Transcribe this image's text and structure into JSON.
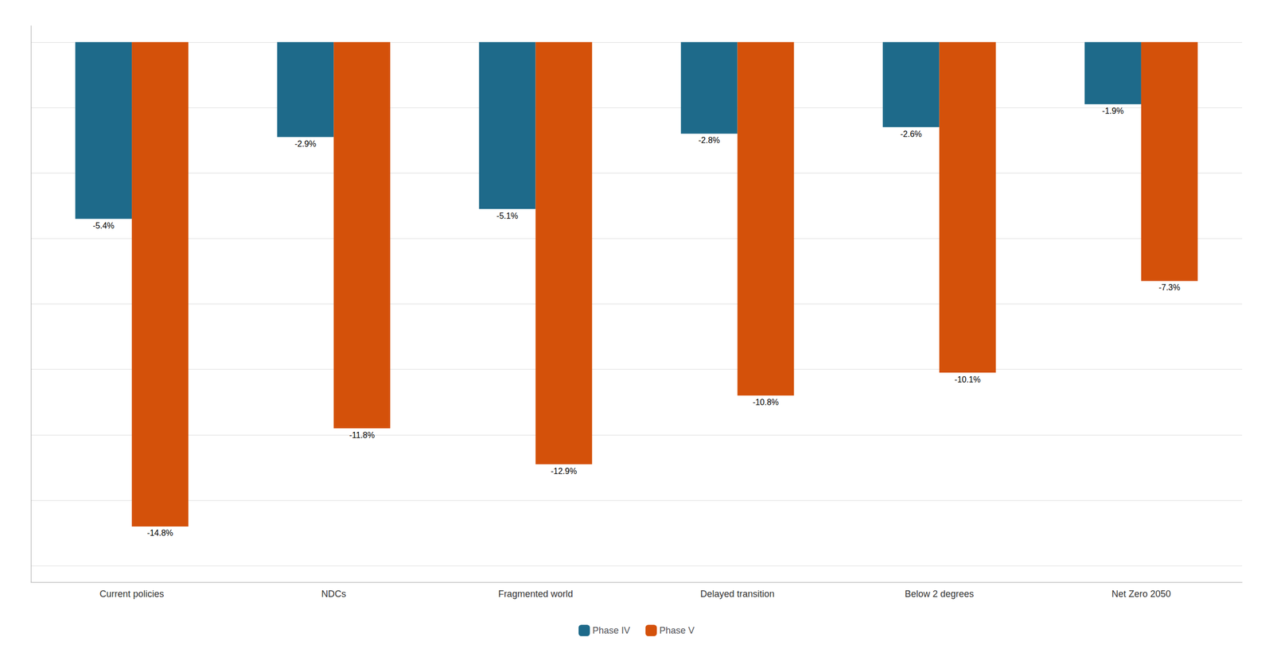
{
  "chart_data": {
    "type": "bar",
    "categories": [
      "Current policies",
      "NDCs",
      "Fragmented world",
      "Delayed transition",
      "Below 2 degrees",
      "Net Zero 2050"
    ],
    "series": [
      {
        "name": "Phase IV",
        "color": "#1e6a8a",
        "values": [
          -5.4,
          -2.9,
          -5.1,
          -2.8,
          -2.6,
          -1.9
        ],
        "value_labels": [
          "-5.4%",
          "-2.9%",
          "-5.1%",
          "-2.8%",
          "-2.6%",
          "-1.9%"
        ]
      },
      {
        "name": "Phase V",
        "color": "#d4510a",
        "values": [
          -14.8,
          -11.8,
          -12.9,
          -10.8,
          -10.1,
          -7.3
        ],
        "value_labels": [
          "-14.8%",
          "-11.8%",
          "-12.9%",
          "-10.8%",
          "-10.1%",
          "-7.3%"
        ]
      }
    ],
    "ylim": [
      -16.5,
      0.5
    ],
    "yticks": [
      -16,
      -14,
      -12,
      -10,
      -8,
      -6,
      -4,
      -2,
      0
    ],
    "grid": true,
    "legend": "bottom",
    "data_labels": true,
    "tick_labels": "x"
  }
}
